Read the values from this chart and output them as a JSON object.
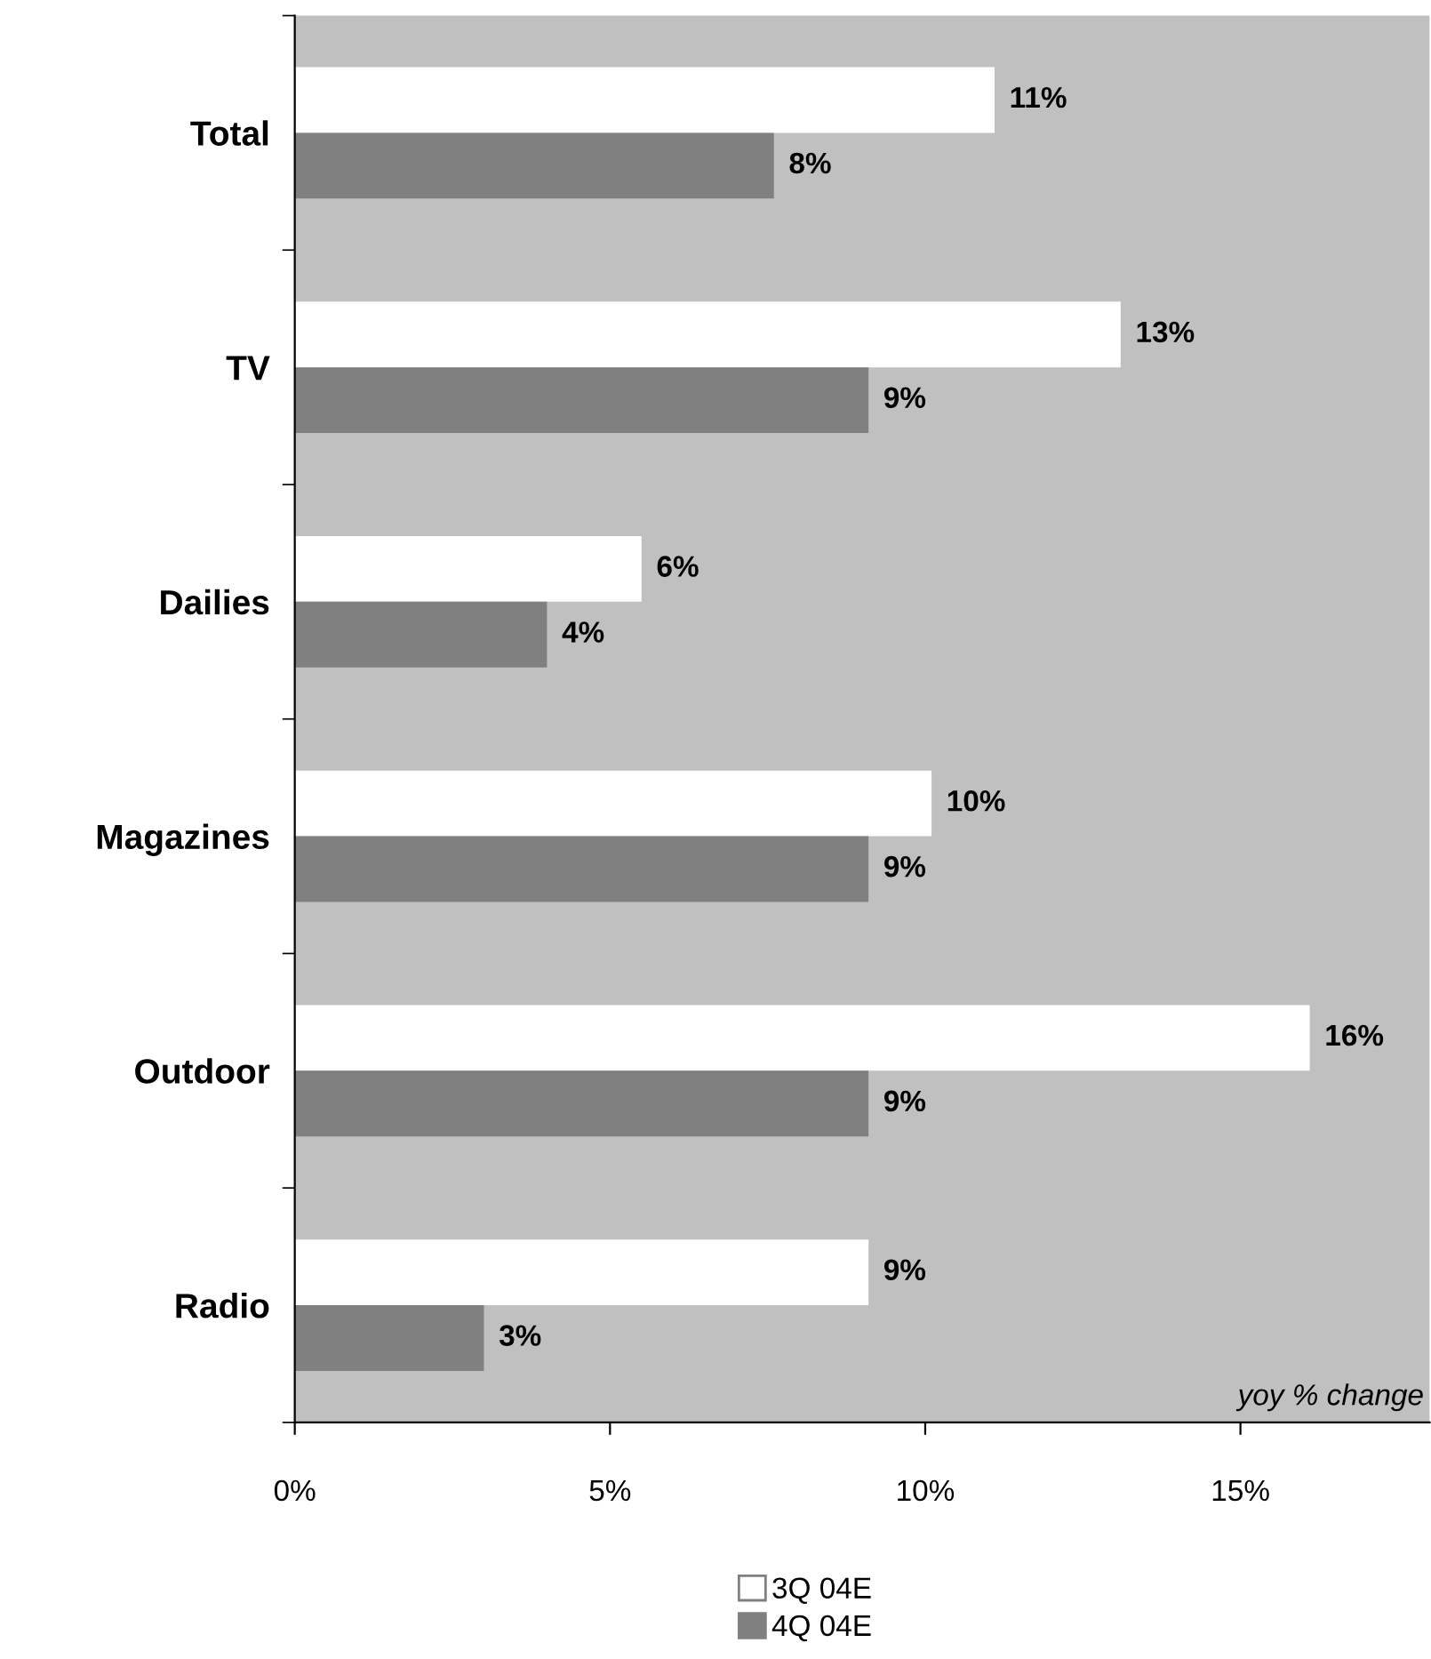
{
  "chart_data": {
    "type": "bar",
    "orientation": "horizontal",
    "categories": [
      "Total",
      "TV",
      "Dailies",
      "Magazines",
      "Outdoor",
      "Radio"
    ],
    "series": [
      {
        "name": "3Q 04E",
        "color": "#ffffff",
        "values": [
          11.1,
          13.1,
          5.5,
          10.1,
          16.1,
          9.1
        ],
        "value_labels": [
          "11%",
          "13%",
          "6%",
          "10%",
          "16%",
          "9%"
        ]
      },
      {
        "name": "4Q 04E",
        "color": "#808080",
        "values": [
          7.6,
          9.1,
          4.0,
          9.1,
          9.1,
          3.0
        ],
        "value_labels": [
          "8%",
          "9%",
          "4%",
          "9%",
          "9%",
          "3%"
        ]
      }
    ],
    "xlim": [
      0,
      18
    ],
    "xticks": [
      {
        "value": 0,
        "label": "0%"
      },
      {
        "value": 5,
        "label": "5%"
      },
      {
        "value": 10,
        "label": "10%"
      },
      {
        "value": 15,
        "label": "15%"
      }
    ],
    "annotations": [
      "yoy % change"
    ],
    "grid": false,
    "legend": "bottom"
  }
}
